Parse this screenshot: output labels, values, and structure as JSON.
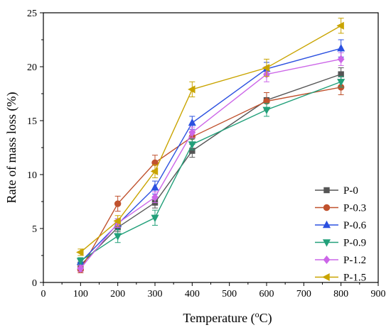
{
  "chart_data": {
    "type": "line",
    "xlabel": "Temperature (",
    "xlabel_sup": "o",
    "xlabel_tail": "C)",
    "ylabel": "Rate of mass loss (%)",
    "xlim": [
      0,
      900
    ],
    "ylim": [
      0,
      25
    ],
    "x_ticks": [
      0,
      100,
      200,
      300,
      400,
      500,
      600,
      700,
      800,
      900
    ],
    "y_ticks": [
      0,
      5,
      10,
      15,
      20,
      25
    ],
    "grid": false,
    "legend_position": "bottom-right",
    "x": [
      100,
      200,
      300,
      400,
      600,
      800
    ],
    "series": [
      {
        "name": "P-0",
        "color": "#555555",
        "marker": "square",
        "values": [
          1.6,
          5.1,
          7.4,
          12.2,
          16.9,
          19.3
        ],
        "errors": [
          0.3,
          0.4,
          0.5,
          0.6,
          0.7,
          0.6
        ]
      },
      {
        "name": "P-0.3",
        "color": "#c0522e",
        "marker": "circle",
        "values": [
          1.2,
          7.3,
          11.1,
          13.5,
          16.8,
          18.1
        ],
        "errors": [
          0.3,
          0.7,
          0.7,
          0.5,
          0.8,
          0.7
        ]
      },
      {
        "name": "P-0.6",
        "color": "#2b50e0",
        "marker": "triangle-up",
        "values": [
          1.9,
          5.4,
          8.8,
          14.8,
          19.8,
          21.7
        ],
        "errors": [
          0.3,
          0.5,
          0.6,
          0.6,
          0.6,
          0.8
        ]
      },
      {
        "name": "P-0.9",
        "color": "#22a07a",
        "marker": "triangle-down",
        "values": [
          2.0,
          4.3,
          6.0,
          12.8,
          16.0,
          18.6
        ],
        "errors": [
          0.3,
          0.6,
          0.7,
          0.5,
          0.6,
          0.5
        ]
      },
      {
        "name": "P-1.2",
        "color": "#cc66e8",
        "marker": "diamond",
        "values": [
          1.3,
          5.5,
          7.9,
          13.9,
          19.3,
          20.7
        ],
        "errors": [
          0.3,
          0.4,
          0.5,
          0.5,
          0.7,
          0.6
        ]
      },
      {
        "name": "P-1.5",
        "color": "#c9a400",
        "marker": "triangle-left",
        "values": [
          2.8,
          5.7,
          10.3,
          17.9,
          19.9,
          23.8
        ],
        "errors": [
          0.3,
          0.5,
          0.6,
          0.7,
          0.8,
          0.7
        ]
      }
    ]
  }
}
